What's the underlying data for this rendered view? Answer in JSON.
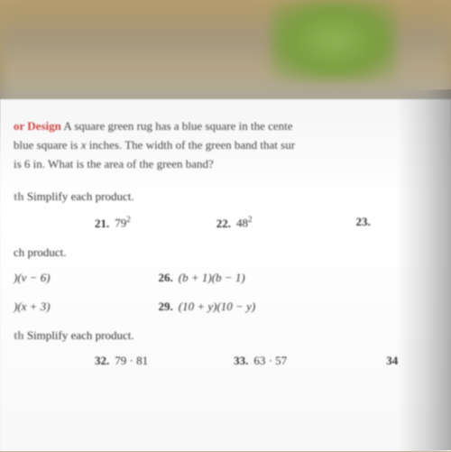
{
  "word_problem": {
    "title_fragment": "or Design",
    "title_color": "#cc4444",
    "line1": "A square green rug has a blue square in the cente",
    "line2_start": "blue square is ",
    "line2_var": "x",
    "line2_end": " inches. The width of the green band that sur",
    "line3": "is 6 in. What is the area of the green band?"
  },
  "section1": {
    "prefix": "th",
    "heading": "Simplify each product."
  },
  "problems_row1": [
    {
      "num": "21.",
      "expr_base": "79",
      "expr_sup": "2"
    },
    {
      "num": "22.",
      "expr_base": "48",
      "expr_sup": "2"
    },
    {
      "num": "23.",
      "expr_base": "",
      "expr_sup": ""
    }
  ],
  "section2": {
    "heading": "ch product."
  },
  "problems_row2": [
    {
      "num": "",
      "expr": ")(v − 6)"
    },
    {
      "num": "26.",
      "expr": "(b + 1)(b − 1)"
    }
  ],
  "problems_row3": [
    {
      "num": "",
      "expr": ")(x + 3)"
    },
    {
      "num": "29.",
      "expr": "(10 + y)(10 − y)"
    }
  ],
  "section3": {
    "prefix": "th",
    "heading": "Simplify each product."
  },
  "problems_row4": [
    {
      "num": "32.",
      "expr": "79 · 81"
    },
    {
      "num": "33.",
      "expr": "63 · 57"
    },
    {
      "num": "34",
      "expr": ""
    }
  ],
  "styling": {
    "body_font": "Georgia, serif",
    "text_color": "#333333",
    "red_color": "#cc4444",
    "gray_color": "#888888",
    "page_bg": "#ffffff",
    "font_size_pt": 13
  }
}
